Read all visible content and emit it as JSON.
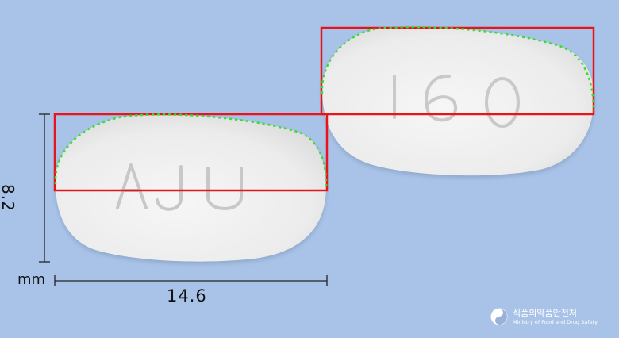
{
  "image": {
    "background_color": "#a9c3e8",
    "pill_color": "#f1f1f1",
    "box_color": "#e8141c",
    "contour_color": "#33e02a"
  },
  "pills": [
    {
      "imprint": "AJU"
    },
    {
      "imprint": "160"
    }
  ],
  "dimensions": {
    "height": "8.2",
    "width": "14.6",
    "unit": "mm"
  },
  "logo": {
    "korean": "식품의약품안전처",
    "english": "Ministry of Food and Drug Safety"
  }
}
